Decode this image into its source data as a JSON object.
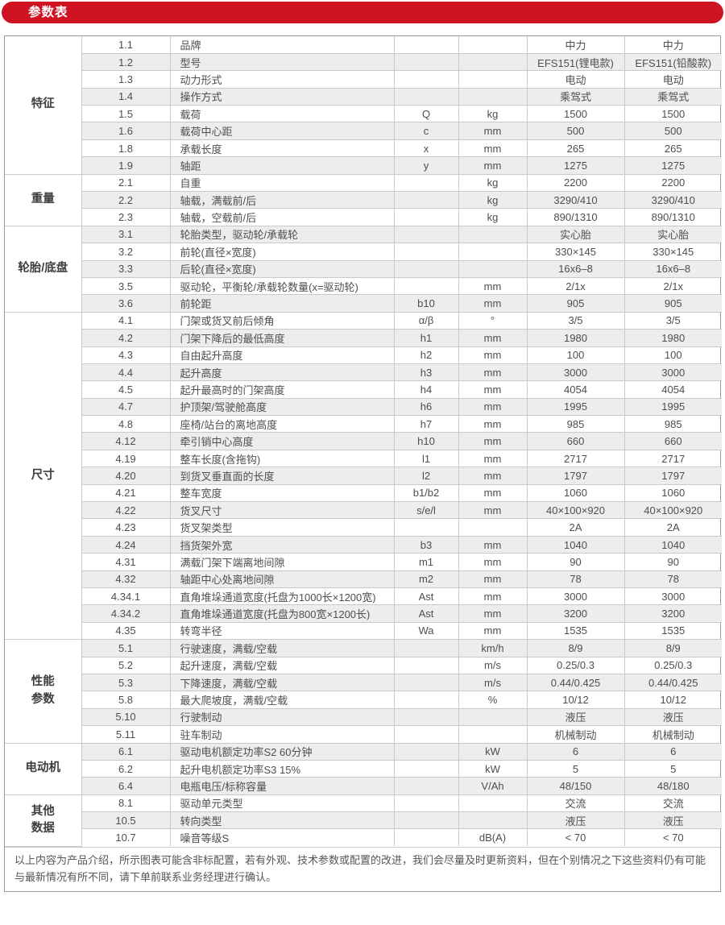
{
  "title": "参数表",
  "colors": {
    "accent": "#d01323",
    "stripe": "#ededed",
    "border": "#9a9a9a",
    "text": "#4e4e4e"
  },
  "table": {
    "groups": [
      {
        "label": "特征",
        "rows": [
          {
            "no": "1.1",
            "desc": "品牌",
            "sym": "",
            "unit": "",
            "v1": "中力",
            "v2": "中力"
          },
          {
            "no": "1.2",
            "desc": "型号",
            "sym": "",
            "unit": "",
            "v1": "EFS151(锂电款)",
            "v2": "EFS151(铅酸款)"
          },
          {
            "no": "1.3",
            "desc": "动力形式",
            "sym": "",
            "unit": "",
            "v1": "电动",
            "v2": "电动"
          },
          {
            "no": "1.4",
            "desc": "操作方式",
            "sym": "",
            "unit": "",
            "v1": "乘驾式",
            "v2": "乘驾式"
          },
          {
            "no": "1.5",
            "desc": "载荷",
            "sym": "Q",
            "unit": "kg",
            "v1": "1500",
            "v2": "1500"
          },
          {
            "no": "1.6",
            "desc": "载荷中心距",
            "sym": "c",
            "unit": "mm",
            "v1": "500",
            "v2": "500"
          },
          {
            "no": "1.8",
            "desc": "承载长度",
            "sym": "x",
            "unit": "mm",
            "v1": "265",
            "v2": "265"
          },
          {
            "no": "1.9",
            "desc": "轴距",
            "sym": "y",
            "unit": "mm",
            "v1": "1275",
            "v2": "1275"
          }
        ]
      },
      {
        "label": "重量",
        "rows": [
          {
            "no": "2.1",
            "desc": "自重",
            "sym": "",
            "unit": "kg",
            "v1": "2200",
            "v2": "2200"
          },
          {
            "no": "2.2",
            "desc": "轴载，满载前/后",
            "sym": "",
            "unit": "kg",
            "v1": "3290/410",
            "v2": "3290/410"
          },
          {
            "no": "2.3",
            "desc": "轴载，空载前/后",
            "sym": "",
            "unit": "kg",
            "v1": "890/1310",
            "v2": "890/1310"
          }
        ]
      },
      {
        "label": "轮胎/底盘",
        "rows": [
          {
            "no": "3.1",
            "desc": "轮胎类型，驱动轮/承载轮",
            "sym": "",
            "unit": "",
            "v1": "实心胎",
            "v2": "实心胎"
          },
          {
            "no": "3.2",
            "desc": "前轮(直径×宽度)",
            "sym": "",
            "unit": "",
            "v1": "330×145",
            "v2": "330×145"
          },
          {
            "no": "3.3",
            "desc": "后轮(直径×宽度)",
            "sym": "",
            "unit": "",
            "v1": "16x6–8",
            "v2": "16x6–8"
          },
          {
            "no": "3.5",
            "desc": "驱动轮，平衡轮/承载轮数量(x=驱动轮)",
            "sym": "",
            "unit": "mm",
            "v1": "2/1x",
            "v2": "2/1x"
          },
          {
            "no": "3.6",
            "desc": "前轮距",
            "sym": "b10",
            "unit": "mm",
            "v1": "905",
            "v2": "905"
          }
        ]
      },
      {
        "label": "尺寸",
        "rows": [
          {
            "no": "4.1",
            "desc": "门架或货叉前后倾角",
            "sym": "α/β",
            "unit": "°",
            "v1": "3/5",
            "v2": "3/5"
          },
          {
            "no": "4.2",
            "desc": "门架下降后的最低高度",
            "sym": "h1",
            "unit": "mm",
            "v1": "1980",
            "v2": "1980"
          },
          {
            "no": "4.3",
            "desc": "自由起升高度",
            "sym": "h2",
            "unit": "mm",
            "v1": "100",
            "v2": "100"
          },
          {
            "no": "4.4",
            "desc": "起升高度",
            "sym": "h3",
            "unit": "mm",
            "v1": "3000",
            "v2": "3000"
          },
          {
            "no": "4.5",
            "desc": "起升最高时的门架高度",
            "sym": "h4",
            "unit": "mm",
            "v1": "4054",
            "v2": "4054"
          },
          {
            "no": "4.7",
            "desc": "护顶架/驾驶舱高度",
            "sym": "h6",
            "unit": "mm",
            "v1": "1995",
            "v2": "1995"
          },
          {
            "no": "4.8",
            "desc": "座椅/站台的离地高度",
            "sym": "h7",
            "unit": "mm",
            "v1": "985",
            "v2": "985"
          },
          {
            "no": "4.12",
            "desc": "牵引销中心高度",
            "sym": "h10",
            "unit": "mm",
            "v1": "660",
            "v2": "660"
          },
          {
            "no": "4.19",
            "desc": "整车长度(含拖钩)",
            "sym": "l1",
            "unit": "mm",
            "v1": "2717",
            "v2": "2717"
          },
          {
            "no": "4.20",
            "desc": "到货叉垂直面的长度",
            "sym": "l2",
            "unit": "mm",
            "v1": "1797",
            "v2": "1797"
          },
          {
            "no": "4.21",
            "desc": "整车宽度",
            "sym": "b1/b2",
            "unit": "mm",
            "v1": "1060",
            "v2": "1060"
          },
          {
            "no": "4.22",
            "desc": "货叉尺寸",
            "sym": "s/e/l",
            "unit": "mm",
            "v1": "40×100×920",
            "v2": "40×100×920"
          },
          {
            "no": "4.23",
            "desc": "货叉架类型",
            "sym": "",
            "unit": "",
            "v1": "2A",
            "v2": "2A"
          },
          {
            "no": "4.24",
            "desc": "挡货架外宽",
            "sym": "b3",
            "unit": "mm",
            "v1": "1040",
            "v2": "1040"
          },
          {
            "no": "4.31",
            "desc": "满载门架下端离地间隙",
            "sym": "m1",
            "unit": "mm",
            "v1": "90",
            "v2": "90"
          },
          {
            "no": "4.32",
            "desc": "轴距中心处离地间隙",
            "sym": "m2",
            "unit": "mm",
            "v1": "78",
            "v2": "78"
          },
          {
            "no": "4.34.1",
            "desc": "直角堆垛通道宽度(托盘为1000长×1200宽)",
            "sym": "Ast",
            "unit": "mm",
            "v1": "3000",
            "v2": "3000"
          },
          {
            "no": "4.34.2",
            "desc": "直角堆垛通道宽度(托盘为800宽×1200长)",
            "sym": "Ast",
            "unit": "mm",
            "v1": "3200",
            "v2": "3200"
          },
          {
            "no": "4.35",
            "desc": "转弯半径",
            "sym": "Wa",
            "unit": "mm",
            "v1": "1535",
            "v2": "1535"
          }
        ]
      },
      {
        "label": "性能\n参数",
        "rows": [
          {
            "no": "5.1",
            "desc": "行驶速度，满载/空载",
            "sym": "",
            "unit": "km/h",
            "v1": "8/9",
            "v2": "8/9"
          },
          {
            "no": "5.2",
            "desc": "起升速度，满载/空载",
            "sym": "",
            "unit": "m/s",
            "v1": "0.25/0.3",
            "v2": "0.25/0.3"
          },
          {
            "no": "5.3",
            "desc": "下降速度，满载/空载",
            "sym": "",
            "unit": "m/s",
            "v1": "0.44/0.425",
            "v2": "0.44/0.425"
          },
          {
            "no": "5.8",
            "desc": "最大爬坡度，满载/空载",
            "sym": "",
            "unit": "%",
            "v1": "10/12",
            "v2": "10/12"
          },
          {
            "no": "5.10",
            "desc": "行驶制动",
            "sym": "",
            "unit": "",
            "v1": "液压",
            "v2": "液压"
          },
          {
            "no": "5.11",
            "desc": "驻车制动",
            "sym": "",
            "unit": "",
            "v1": "机械制动",
            "v2": "机械制动"
          }
        ]
      },
      {
        "label": "电动机",
        "rows": [
          {
            "no": "6.1",
            "desc": "驱动电机额定功率S2 60分钟",
            "sym": "",
            "unit": "kW",
            "v1": "6",
            "v2": "6"
          },
          {
            "no": "6.2",
            "desc": "起升电机额定功率S3 15%",
            "sym": "",
            "unit": "kW",
            "v1": "5",
            "v2": "5"
          },
          {
            "no": "6.4",
            "desc": "电瓶电压/标称容量",
            "sym": "",
            "unit": "V/Ah",
            "v1": "48/150",
            "v2": "48/180"
          }
        ]
      },
      {
        "label": "其他\n数据",
        "rows": [
          {
            "no": "8.1",
            "desc": "驱动单元类型",
            "sym": "",
            "unit": "",
            "v1": "交流",
            "v2": "交流"
          },
          {
            "no": "10.5",
            "desc": "转向类型",
            "sym": "",
            "unit": "",
            "v1": "液压",
            "v2": "液压"
          },
          {
            "no": "10.7",
            "desc": "噪音等级S",
            "sym": "",
            "unit": "dB(A)",
            "v1": "< 70",
            "v2": "< 70"
          }
        ]
      }
    ]
  },
  "footer": {
    "text": "以上内容为产品介绍，所示图表可能含非标配置，若有外观、技术参数或配置的改进，我们会尽量及时更新资料，但在个别情况之下这些资料仍有可能与最新情况有所不同，请下单前联系业务经理进行确认。"
  }
}
